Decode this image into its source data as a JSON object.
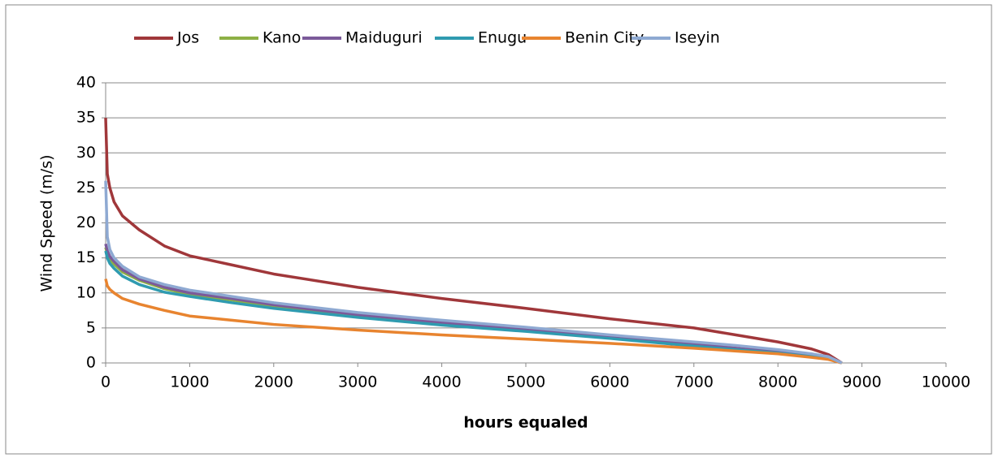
{
  "chart_data": {
    "type": "line",
    "x_label": "hours equaled",
    "y_label": "Wind Speed (m/s)",
    "x": [
      0,
      20,
      50,
      100,
      200,
      400,
      700,
      1000,
      1500,
      2000,
      3000,
      4000,
      5000,
      6000,
      7000,
      7500,
      8000,
      8400,
      8600,
      8760
    ],
    "series": [
      {
        "name": "Jos",
        "color": "#a0373a",
        "values": [
          35,
          27,
          25,
          23,
          21,
          19,
          16.7,
          15.3,
          14,
          12.7,
          10.8,
          9.2,
          7.8,
          6.3,
          5,
          4,
          3,
          2,
          1.2,
          0
        ]
      },
      {
        "name": "Kano",
        "color": "#8db045",
        "values": [
          16.5,
          15.6,
          14.8,
          14.1,
          13,
          11.8,
          10.6,
          9.8,
          9,
          8.1,
          6.8,
          5.7,
          4.7,
          3.6,
          2.6,
          2.1,
          1.5,
          1,
          0.7,
          0
        ]
      },
      {
        "name": "Maiduguri",
        "color": "#7b5a9a",
        "values": [
          17,
          16,
          15.2,
          14.5,
          13.3,
          12,
          10.8,
          10,
          9.2,
          8.3,
          6.9,
          5.8,
          4.8,
          3.7,
          2.7,
          2.1,
          1.6,
          1.1,
          0.8,
          0
        ]
      },
      {
        "name": "Enugu",
        "color": "#2f9bb0",
        "values": [
          16,
          15,
          14.2,
          13.5,
          12.4,
          11.2,
          10.1,
          9.5,
          8.6,
          7.8,
          6.5,
          5.4,
          4.5,
          3.5,
          2.4,
          1.9,
          1.4,
          0.9,
          0.6,
          0
        ]
      },
      {
        "name": "Benin City",
        "color": "#e8842f",
        "values": [
          12,
          11,
          10.5,
          10,
          9.2,
          8.4,
          7.5,
          6.7,
          6.1,
          5.5,
          4.7,
          4,
          3.4,
          2.8,
          2.1,
          1.7,
          1.3,
          0.8,
          0.5,
          0
        ]
      },
      {
        "name": "Iseyin",
        "color": "#8ea9d2",
        "values": [
          26,
          18,
          16.2,
          15,
          13.8,
          12.3,
          11.2,
          10.4,
          9.5,
          8.6,
          7.2,
          6.1,
          5.1,
          4,
          3,
          2.5,
          1.9,
          1.3,
          0.9,
          0
        ]
      }
    ],
    "xlim": [
      0,
      10000
    ],
    "xticks": [
      0,
      1000,
      2000,
      3000,
      4000,
      5000,
      6000,
      7000,
      8000,
      9000,
      10000
    ],
    "ylim": [
      0,
      40
    ],
    "yticks": [
      0,
      5,
      10,
      15,
      20,
      25,
      30,
      35,
      40
    ],
    "grid": true,
    "legend": "top"
  }
}
